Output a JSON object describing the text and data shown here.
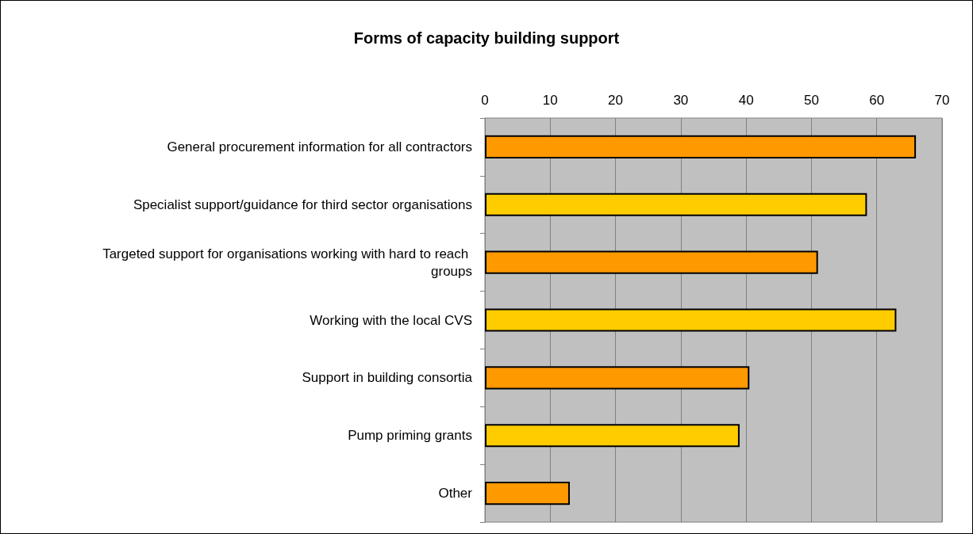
{
  "chart_data": {
    "type": "bar",
    "orientation": "horizontal",
    "title": "Forms of capacity building support",
    "categories": [
      "General procurement information for all contractors",
      "Specialist support/guidance for third sector organisations",
      "Targeted support for organisations working with hard to reach groups",
      "Working with the local CVS",
      "Support in building consortia",
      "Pump priming grants",
      "Other"
    ],
    "values": [
      66,
      58.5,
      51,
      63,
      40.5,
      39,
      13
    ],
    "colors": [
      "#ff9900",
      "#ffcc00",
      "#ff9900",
      "#ffcc00",
      "#ff9900",
      "#ffcc00",
      "#ff9900"
    ],
    "xlim": [
      0,
      70
    ],
    "xticks": [
      0,
      10,
      20,
      30,
      40,
      50,
      60,
      70
    ],
    "grid": "x"
  }
}
